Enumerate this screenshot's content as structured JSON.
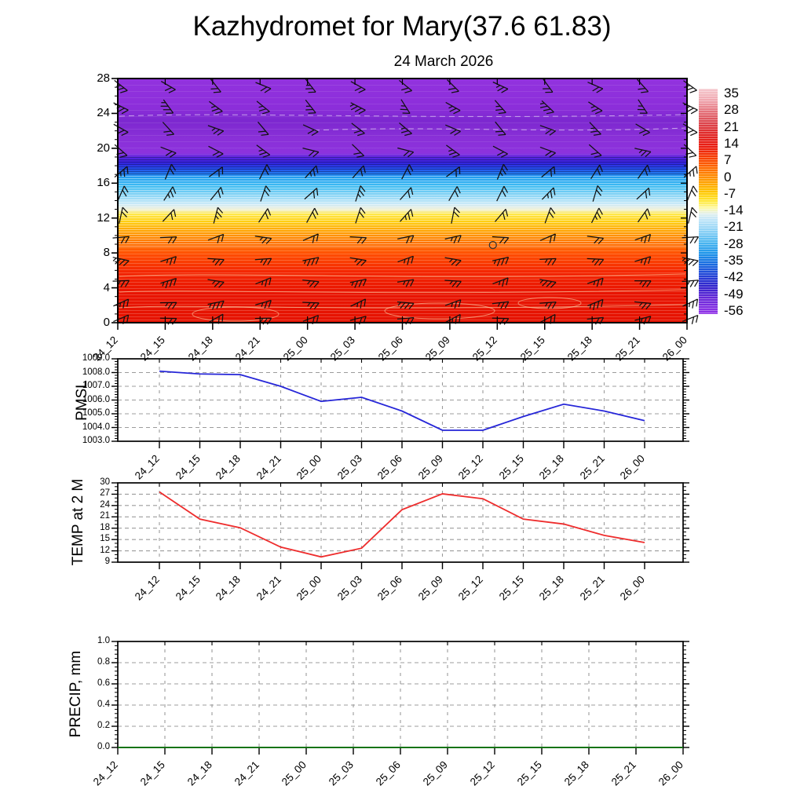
{
  "title": "Kazhydromet for Mary(37.6 61.83)",
  "subtitle": "24 March 2026",
  "station": {
    "name": "Mary",
    "lon": "37.6",
    "lat": "61.83",
    "provider": "Kazhydromet"
  },
  "time_labels": [
    "24_12",
    "24_15",
    "24_18",
    "24_21",
    "25_00",
    "25_03",
    "25_06",
    "25_09",
    "25_12",
    "25_15",
    "25_18",
    "25_21",
    "26_00"
  ],
  "colors": {
    "pmsl_line": "#2626d8",
    "temp_line": "#ee2c2c",
    "precip_line": "#0e7a0e",
    "grid": "#9c9c9c",
    "axis": "#000000",
    "barb": "#111111"
  },
  "chart_data": [
    {
      "id": "cross-section",
      "type": "heatmap",
      "title": "24 March 2026",
      "description": "Time-height cross-section: temperature shading (degC) with wind barbs",
      "x_tick_labels": [
        "24_12",
        "24_15",
        "24_18",
        "24_21",
        "25_00",
        "25_03",
        "25_06",
        "25_09",
        "25_12",
        "25_15",
        "25_18",
        "25_21",
        "26_00"
      ],
      "y_ticks": [
        0,
        4,
        8,
        12,
        16,
        20,
        24,
        28
      ],
      "y_minor_step": 1,
      "ylim": [
        0,
        28
      ],
      "colorbar_labels": [
        "35",
        "28",
        "21",
        "14",
        "7",
        "0",
        "-7",
        "-14",
        "-21",
        "-28",
        "-35",
        "-42",
        "-49",
        "-56"
      ],
      "colorbar_gradient": [
        [
          "0",
          "#f5c8ce"
        ],
        [
          "5",
          "#f0a8b0"
        ],
        [
          "10",
          "#e4737c"
        ],
        [
          "15",
          "#dc4850"
        ],
        [
          "20",
          "#e02828"
        ],
        [
          "26",
          "#ea1c10"
        ],
        [
          "31",
          "#f84300"
        ],
        [
          "36",
          "#ff7300"
        ],
        [
          "41",
          "#ff9d00"
        ],
        [
          "46",
          "#ffc800"
        ],
        [
          "50",
          "#ffe93c"
        ],
        [
          "53",
          "#fdf9a8"
        ],
        [
          "55.5",
          "#e2f0ee"
        ],
        [
          "58",
          "#c2e6f8"
        ],
        [
          "63",
          "#8ed2f6"
        ],
        [
          "68",
          "#4fb8f0"
        ],
        [
          "73",
          "#1e96ea"
        ],
        [
          "78",
          "#1a6ae0"
        ],
        [
          "83",
          "#2442d6"
        ],
        [
          "88",
          "#3322cc"
        ],
        [
          "93",
          "#6929d8"
        ],
        [
          "100",
          "#9334e8"
        ]
      ],
      "field_gradient": [
        [
          "0",
          "#9232de"
        ],
        [
          "12",
          "#8c2eda"
        ],
        [
          "17",
          "#7c28cf"
        ],
        [
          "25",
          "#8a30d8"
        ],
        [
          "30.5",
          "#8c32dd"
        ],
        [
          "32.5",
          "#5526e0"
        ],
        [
          "34.5",
          "#3422dd"
        ],
        [
          "37",
          "#2450ec"
        ],
        [
          "40.5",
          "#22a0f0"
        ],
        [
          "44",
          "#40bcf2"
        ],
        [
          "48",
          "#8cd6f5"
        ],
        [
          "51.5",
          "#cdeaf8"
        ],
        [
          "53.5",
          "#eef0d8"
        ],
        [
          "55.5",
          "#ffe84a"
        ],
        [
          "58.5",
          "#ffd012"
        ],
        [
          "62",
          "#ffa805"
        ],
        [
          "66.5",
          "#ff7b00"
        ],
        [
          "72",
          "#ff4d00"
        ],
        [
          "79",
          "#f42700"
        ],
        [
          "88",
          "#e81400"
        ],
        [
          "100",
          "#e51300"
        ]
      ],
      "wind_barbs": {
        "columns": 13,
        "rows": [
          {
            "height": 27.2,
            "angle": -38,
            "flags": 2
          },
          {
            "height": 24.8,
            "angle": -42,
            "flags": 3
          },
          {
            "height": 22.3,
            "angle": -35,
            "flags": 2
          },
          {
            "height": 19.8,
            "angle": -28,
            "flags": 2
          },
          {
            "height": 17.3,
            "angle": 52,
            "flags": 2
          },
          {
            "height": 14.8,
            "angle": 58,
            "flags": 2
          },
          {
            "height": 12.3,
            "angle": 63,
            "flags": 2
          },
          {
            "height": 9.8,
            "angle": 8,
            "flags": 2
          },
          {
            "height": 7.3,
            "angle": 4,
            "flags": 3
          },
          {
            "height": 4.8,
            "angle": 6,
            "flags": 3
          },
          {
            "height": 2.3,
            "angle": 10,
            "flags": 3
          },
          {
            "height": 0.5,
            "angle": 14,
            "flags": 2
          }
        ],
        "calm_marker": {
          "x_frac": 0.659,
          "height": 8.9
        }
      }
    },
    {
      "id": "pmsl",
      "type": "line",
      "ylabel": "PMSL",
      "x_tick_labels": [
        "24_12",
        "24_15",
        "24_18",
        "24_21",
        "25_00",
        "25_03",
        "25_06",
        "25_09",
        "25_12",
        "25_15",
        "25_18",
        "25_21",
        "26_00"
      ],
      "values": [
        1008.1,
        1007.9,
        1007.85,
        1007.0,
        1005.9,
        1006.2,
        1005.2,
        1003.8,
        1003.8,
        1004.8,
        1005.7,
        1005.2,
        1004.5
      ],
      "ylim": [
        1003,
        1009
      ],
      "y_tick_step": 1,
      "y_tick_decimals": 1,
      "y_minor_divisions": 5,
      "line_color": "#2626d8"
    },
    {
      "id": "temp-2m",
      "type": "line",
      "ylabel": "TEMP at 2 M",
      "x_tick_labels": [
        "24_12",
        "24_15",
        "24_18",
        "24_21",
        "25_00",
        "25_03",
        "25_06",
        "25_09",
        "25_12",
        "25_15",
        "25_18",
        "25_21",
        "26_00"
      ],
      "values": [
        27.6,
        20.4,
        18.1,
        13.0,
        10.4,
        12.7,
        22.9,
        27.1,
        25.8,
        20.4,
        19.1,
        16.1,
        14.2
      ],
      "ylim": [
        9,
        30
      ],
      "y_tick_step": 3,
      "y_tick_decimals": 0,
      "y_minor_divisions": 3,
      "line_color": "#ee2c2c"
    },
    {
      "id": "precip",
      "type": "line",
      "ylabel": "PRECIP, mm",
      "x_tick_labels": [
        "24_12",
        "24_15",
        "24_18",
        "24_21",
        "25_00",
        "25_03",
        "25_06",
        "25_09",
        "25_12",
        "25_15",
        "25_18",
        "25_21",
        "26_00"
      ],
      "values": [
        0.0,
        0.0,
        0.0,
        0.0,
        0.0,
        0.0,
        0.0,
        0.0,
        0.0,
        0.0,
        0.0,
        0.0,
        0.0
      ],
      "ylim": [
        0.0,
        1.0
      ],
      "y_tick_step": 0.2,
      "y_tick_decimals": 1,
      "y_minor_divisions": 5,
      "line_color": "#0e7a0e"
    }
  ]
}
